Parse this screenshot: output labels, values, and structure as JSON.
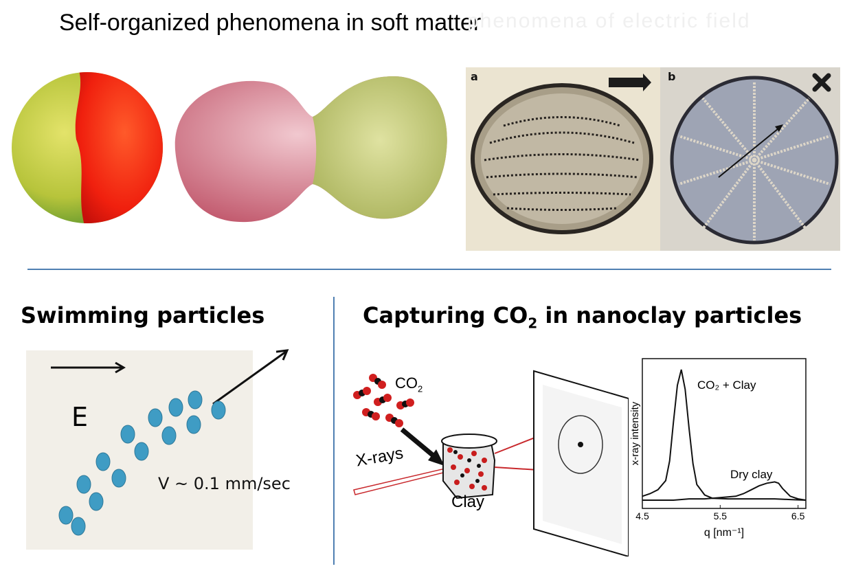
{
  "header": {
    "title": "Self-organized phenomena in soft matter",
    "ghost_text": "phenomena of electric field"
  },
  "top_images": {
    "label_a": "a",
    "label_b": "b"
  },
  "swimming": {
    "title": "Swimming particles",
    "field_label": "E",
    "speed_label": "V ~ 0.1 mm/sec"
  },
  "co2": {
    "title_prefix": "Capturing CO",
    "title_sub": "2",
    "title_suffix": " in nanoclay particles",
    "molecule_label": "CO",
    "molecule_sub": "2",
    "xray_label": "X-rays",
    "clay_label": "Clay"
  },
  "chart_data": {
    "type": "line",
    "xlabel": "q [nm⁻¹]",
    "ylabel": "x-ray intensity",
    "xlim": [
      4.5,
      6.6
    ],
    "x_ticks": [
      "4.5",
      "5.5",
      "6.5"
    ],
    "series": [
      {
        "name": "CO₂ + Clay",
        "x": [
          4.5,
          4.6,
          4.7,
          4.8,
          4.85,
          4.9,
          4.95,
          5.0,
          5.05,
          5.1,
          5.15,
          5.2,
          5.3,
          5.4,
          5.6,
          5.8,
          6.0,
          6.2,
          6.4,
          6.6
        ],
        "y": [
          0.03,
          0.05,
          0.08,
          0.15,
          0.3,
          0.6,
          0.88,
          1.0,
          0.85,
          0.55,
          0.28,
          0.12,
          0.04,
          0.015,
          0.01,
          0.01,
          0.01,
          0.01,
          0.005,
          0.0
        ]
      },
      {
        "name": "Dry clay",
        "x": [
          4.5,
          4.7,
          4.9,
          5.1,
          5.3,
          5.5,
          5.7,
          5.8,
          5.9,
          6.0,
          6.1,
          6.2,
          6.25,
          6.3,
          6.4,
          6.5,
          6.6
        ],
        "y": [
          0.0,
          0.0,
          0.0,
          0.01,
          0.01,
          0.02,
          0.03,
          0.05,
          0.08,
          0.11,
          0.13,
          0.14,
          0.13,
          0.09,
          0.03,
          0.01,
          0.0
        ]
      }
    ],
    "annotations": [
      "CO₂ + Clay",
      "Dry clay"
    ]
  }
}
